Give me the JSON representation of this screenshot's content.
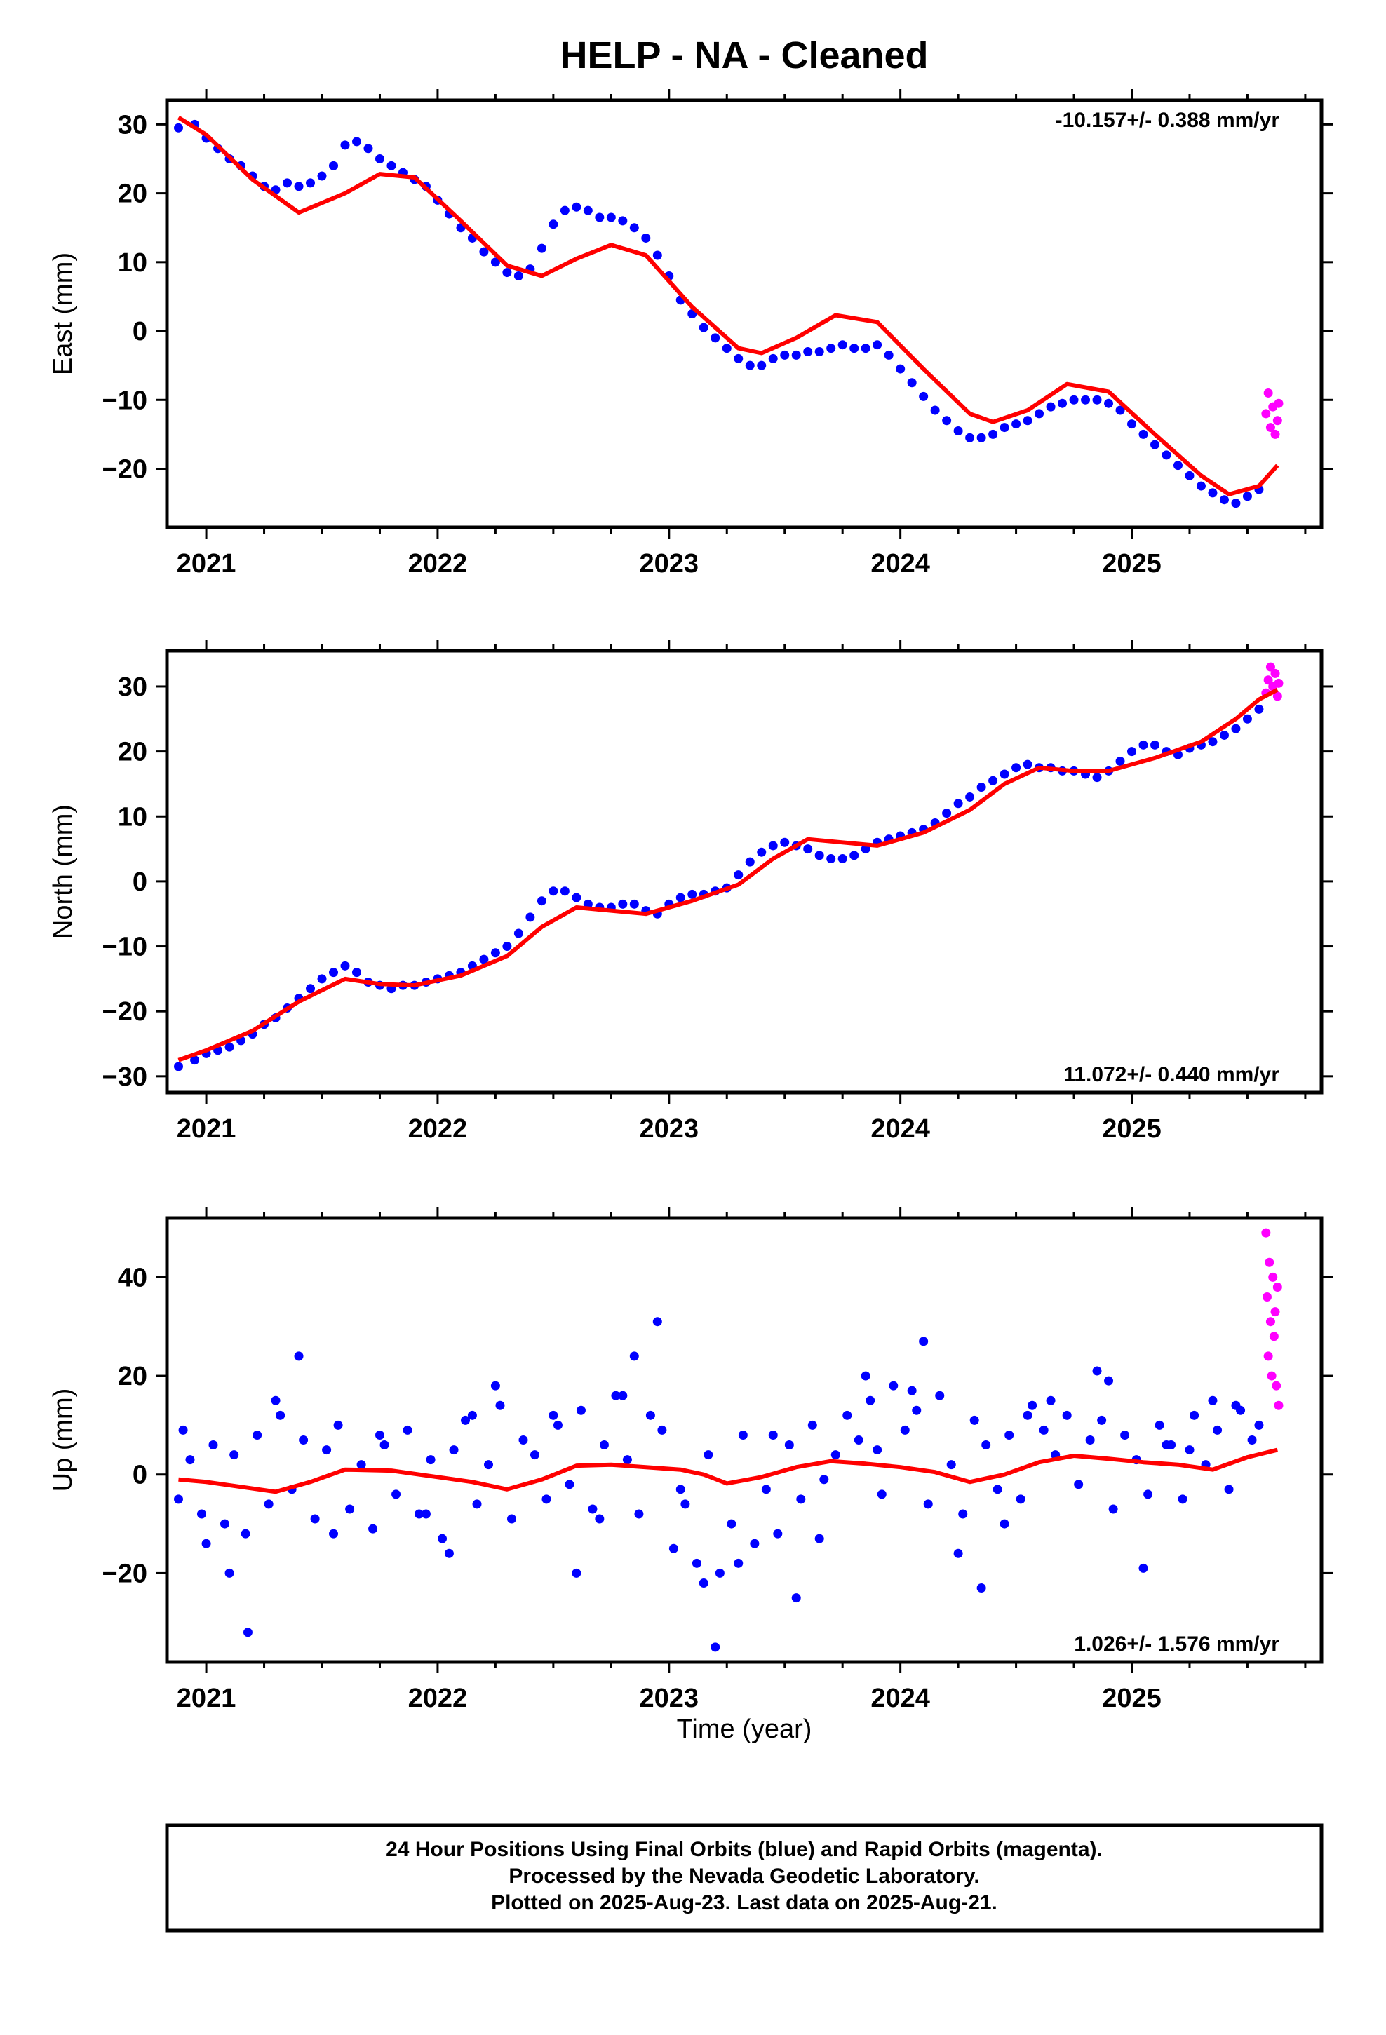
{
  "title": "HELP  - NA - Cleaned",
  "xlabel": "Time (year)",
  "colors": {
    "final": "#0000ff",
    "rapid": "#ff00ff",
    "model": "#ff0000"
  },
  "footer": {
    "line1": "24 Hour Positions Using Final Orbits (blue) and Rapid Orbits (magenta).",
    "line2": "Processed by the Nevada Geodetic Laboratory.",
    "line3": "Plotted on 2025-Aug-23. Last data on 2025-Aug-21."
  },
  "chart_data": [
    {
      "type": "scatter",
      "ylabel": "East (mm)",
      "rate_label": "-10.157+/- 0.388 mm/yr",
      "rate_position": "top-right",
      "xlim": [
        2020.83,
        2025.82
      ],
      "ylim": [
        -28.5,
        33.5
      ],
      "x_ticks": [
        2021,
        2022,
        2023,
        2024,
        2025
      ],
      "y_ticks": [
        -20,
        -10,
        0,
        10,
        20,
        30
      ],
      "model": {
        "x": [
          2020.88,
          2021.0,
          2021.2,
          2021.4,
          2021.6,
          2021.75,
          2021.9,
          2022.1,
          2022.3,
          2022.45,
          2022.6,
          2022.75,
          2022.9,
          2023.1,
          2023.3,
          2023.4,
          2023.55,
          2023.72,
          2023.9,
          2024.1,
          2024.3,
          2024.4,
          2024.55,
          2024.72,
          2024.9,
          2025.1,
          2025.3,
          2025.42,
          2025.55,
          2025.63
        ],
        "y": [
          31,
          28.5,
          22,
          17.2,
          20,
          22.8,
          22.3,
          16,
          9.5,
          8,
          10.5,
          12.5,
          11,
          3.5,
          -2.5,
          -3.2,
          -1,
          2.3,
          1.3,
          -5.5,
          -12,
          -13.2,
          -11.5,
          -7.7,
          -8.8,
          -15,
          -21,
          -23.7,
          -22.5,
          -19.5
        ]
      },
      "final_orbits": {
        "x": [
          2020.88,
          2020.95,
          2021.0,
          2021.05,
          2021.1,
          2021.15,
          2021.2,
          2021.25,
          2021.3,
          2021.35,
          2021.4,
          2021.45,
          2021.5,
          2021.55,
          2021.6,
          2021.65,
          2021.7,
          2021.75,
          2021.8,
          2021.85,
          2021.9,
          2021.95,
          2022.0,
          2022.05,
          2022.1,
          2022.15,
          2022.2,
          2022.25,
          2022.3,
          2022.35,
          2022.4,
          2022.45,
          2022.5,
          2022.55,
          2022.6,
          2022.65,
          2022.7,
          2022.75,
          2022.8,
          2022.85,
          2022.9,
          2022.95,
          2023.0,
          2023.05,
          2023.1,
          2023.15,
          2023.2,
          2023.25,
          2023.3,
          2023.35,
          2023.4,
          2023.45,
          2023.5,
          2023.55,
          2023.6,
          2023.65,
          2023.7,
          2023.75,
          2023.8,
          2023.85,
          2023.9,
          2023.95,
          2024.0,
          2024.05,
          2024.1,
          2024.15,
          2024.2,
          2024.25,
          2024.3,
          2024.35,
          2024.4,
          2024.45,
          2024.5,
          2024.55,
          2024.6,
          2024.65,
          2024.7,
          2024.75,
          2024.8,
          2024.85,
          2024.9,
          2024.95,
          2025.0,
          2025.05,
          2025.1,
          2025.15,
          2025.2,
          2025.25,
          2025.3,
          2025.35,
          2025.4,
          2025.45,
          2025.5,
          2025.55
        ],
        "y": [
          29.5,
          30,
          28,
          26.5,
          25,
          24,
          22.5,
          21,
          20.5,
          21.5,
          21,
          21.5,
          22.5,
          24,
          27,
          27.5,
          26.5,
          25,
          24,
          23,
          22,
          21,
          19,
          17,
          15,
          13.5,
          11.5,
          10,
          8.5,
          8,
          9,
          12,
          15.5,
          17.5,
          18,
          17.5,
          16.5,
          16.5,
          16,
          15,
          13.5,
          11,
          8,
          4.5,
          2.5,
          0.5,
          -1,
          -2.5,
          -4,
          -5,
          -5,
          -4,
          -3.5,
          -3.5,
          -3,
          -3,
          -2.5,
          -2,
          -2.5,
          -2.5,
          -2,
          -3.5,
          -5.5,
          -7.5,
          -9.5,
          -11.5,
          -13,
          -14.5,
          -15.5,
          -15.5,
          -15,
          -14,
          -13.5,
          -13,
          -12,
          -11,
          -10.5,
          -10,
          -10,
          -10,
          -10.5,
          -11.5,
          -13.5,
          -15,
          -16.5,
          -18,
          -19.5,
          -21,
          -22.5,
          -23.5,
          -24.5,
          -25,
          -24,
          -23
        ]
      },
      "rapid_orbits": {
        "x": [
          2025.58,
          2025.59,
          2025.6,
          2025.61,
          2025.62,
          2025.63,
          2025.635
        ],
        "y": [
          -12,
          -9,
          -14,
          -11,
          -15,
          -13,
          -10.5
        ]
      }
    },
    {
      "type": "scatter",
      "ylabel": "North (mm)",
      "rate_label": "11.072+/- 0.440 mm/yr",
      "rate_position": "bottom-right",
      "xlim": [
        2020.83,
        2025.82
      ],
      "ylim": [
        -32.5,
        35.5
      ],
      "x_ticks": [
        2021,
        2022,
        2023,
        2024,
        2025
      ],
      "y_ticks": [
        -30,
        -20,
        -10,
        0,
        10,
        20,
        30
      ],
      "model": {
        "x": [
          2020.88,
          2021.0,
          2021.2,
          2021.4,
          2021.6,
          2021.75,
          2021.9,
          2022.1,
          2022.3,
          2022.45,
          2022.6,
          2022.75,
          2022.9,
          2023.1,
          2023.3,
          2023.45,
          2023.6,
          2023.75,
          2023.9,
          2024.1,
          2024.3,
          2024.45,
          2024.6,
          2024.75,
          2024.9,
          2025.1,
          2025.3,
          2025.45,
          2025.55,
          2025.63
        ],
        "y": [
          -27.5,
          -26,
          -23,
          -18.5,
          -15,
          -15.8,
          -16,
          -14.5,
          -11.5,
          -7,
          -4,
          -4.5,
          -5,
          -3,
          -0.5,
          3.5,
          6.5,
          6,
          5.5,
          7.5,
          11,
          15,
          17.5,
          17,
          17,
          19,
          21.5,
          25,
          28,
          29.5
        ]
      },
      "final_orbits": {
        "x": [
          2020.88,
          2020.95,
          2021.0,
          2021.05,
          2021.1,
          2021.15,
          2021.2,
          2021.25,
          2021.3,
          2021.35,
          2021.4,
          2021.45,
          2021.5,
          2021.55,
          2021.6,
          2021.65,
          2021.7,
          2021.75,
          2021.8,
          2021.85,
          2021.9,
          2021.95,
          2022.0,
          2022.05,
          2022.1,
          2022.15,
          2022.2,
          2022.25,
          2022.3,
          2022.35,
          2022.4,
          2022.45,
          2022.5,
          2022.55,
          2022.6,
          2022.65,
          2022.7,
          2022.75,
          2022.8,
          2022.85,
          2022.9,
          2022.95,
          2023.0,
          2023.05,
          2023.1,
          2023.15,
          2023.2,
          2023.25,
          2023.3,
          2023.35,
          2023.4,
          2023.45,
          2023.5,
          2023.55,
          2023.6,
          2023.65,
          2023.7,
          2023.75,
          2023.8,
          2023.85,
          2023.9,
          2023.95,
          2024.0,
          2024.05,
          2024.1,
          2024.15,
          2024.2,
          2024.25,
          2024.3,
          2024.35,
          2024.4,
          2024.45,
          2024.5,
          2024.55,
          2024.6,
          2024.65,
          2024.7,
          2024.75,
          2024.8,
          2024.85,
          2024.9,
          2024.95,
          2025.0,
          2025.05,
          2025.1,
          2025.15,
          2025.2,
          2025.25,
          2025.3,
          2025.35,
          2025.4,
          2025.45,
          2025.5,
          2025.55
        ],
        "y": [
          -28.5,
          -27.5,
          -26.5,
          -26,
          -25.5,
          -24.5,
          -23.5,
          -22,
          -21,
          -19.5,
          -18,
          -16.5,
          -15,
          -14,
          -13,
          -14,
          -15.5,
          -16,
          -16.5,
          -16,
          -16,
          -15.5,
          -15,
          -14.5,
          -14,
          -13,
          -12,
          -11,
          -10,
          -8,
          -5.5,
          -3,
          -1.5,
          -1.5,
          -2.5,
          -3.5,
          -4,
          -4,
          -3.5,
          -3.5,
          -4.5,
          -5,
          -3.5,
          -2.5,
          -2,
          -2,
          -1.5,
          -1,
          1,
          3,
          4.5,
          5.5,
          6,
          5.5,
          5,
          4,
          3.5,
          3.5,
          4,
          5,
          6,
          6.5,
          7,
          7.5,
          8,
          9,
          10.5,
          12,
          13,
          14.5,
          15.5,
          16.5,
          17.5,
          18,
          17.5,
          17.5,
          17,
          17,
          16.5,
          16,
          17,
          18.5,
          20,
          21,
          21,
          20,
          19.5,
          20.5,
          21,
          21.5,
          22.5,
          23.5,
          25,
          26.5
        ]
      },
      "rapid_orbits": {
        "x": [
          2025.58,
          2025.59,
          2025.6,
          2025.61,
          2025.62,
          2025.63,
          2025.635
        ],
        "y": [
          29,
          31,
          33,
          30,
          32,
          28.5,
          30.5
        ]
      }
    },
    {
      "type": "scatter",
      "ylabel": "Up (mm)",
      "rate_label": "1.026+/- 1.576 mm/yr",
      "rate_position": "bottom-right",
      "xlim": [
        2020.83,
        2025.82
      ],
      "ylim": [
        -38,
        52
      ],
      "x_ticks": [
        2021,
        2022,
        2023,
        2024,
        2025
      ],
      "y_ticks": [
        -20,
        0,
        20,
        40
      ],
      "model": {
        "x": [
          2020.88,
          2021.0,
          2021.15,
          2021.3,
          2021.45,
          2021.6,
          2021.8,
          2022.0,
          2022.15,
          2022.3,
          2022.45,
          2022.6,
          2022.75,
          2022.9,
          2023.05,
          2023.15,
          2023.25,
          2023.4,
          2023.55,
          2023.7,
          2023.85,
          2024.0,
          2024.15,
          2024.3,
          2024.45,
          2024.6,
          2024.75,
          2024.9,
          2025.05,
          2025.2,
          2025.35,
          2025.5,
          2025.63
        ],
        "y": [
          -1,
          -1.5,
          -2.5,
          -3.5,
          -1.5,
          1,
          0.8,
          -0.5,
          -1.5,
          -3,
          -1,
          1.8,
          2,
          1.5,
          1,
          0,
          -1.8,
          -0.5,
          1.5,
          2.7,
          2.2,
          1.5,
          0.5,
          -1.5,
          0,
          2.5,
          3.8,
          3.2,
          2.5,
          2,
          1,
          3.5,
          5
        ]
      },
      "final_orbits": {
        "x": [
          2020.88,
          2020.93,
          2020.98,
          2021.03,
          2021.08,
          2021.12,
          2021.17,
          2021.22,
          2021.27,
          2021.32,
          2021.37,
          2021.42,
          2021.47,
          2021.52,
          2021.57,
          2021.62,
          2021.67,
          2021.72,
          2021.77,
          2021.82,
          2021.87,
          2021.92,
          2021.97,
          2022.02,
          2022.07,
          2022.12,
          2022.17,
          2022.22,
          2022.27,
          2022.32,
          2022.37,
          2022.42,
          2022.47,
          2022.52,
          2022.57,
          2022.62,
          2022.67,
          2022.72,
          2022.77,
          2022.82,
          2022.87,
          2022.92,
          2022.97,
          2023.02,
          2023.07,
          2023.12,
          2023.17,
          2023.22,
          2023.27,
          2023.32,
          2023.37,
          2023.42,
          2023.47,
          2023.52,
          2023.57,
          2023.62,
          2023.67,
          2023.72,
          2023.77,
          2023.82,
          2023.87,
          2023.92,
          2023.97,
          2024.02,
          2024.07,
          2024.12,
          2024.17,
          2024.22,
          2024.27,
          2024.32,
          2024.37,
          2024.42,
          2024.47,
          2024.52,
          2024.57,
          2024.62,
          2024.67,
          2024.72,
          2024.77,
          2024.82,
          2024.87,
          2024.92,
          2024.97,
          2025.02,
          2025.07,
          2025.12,
          2025.17,
          2025.22,
          2025.27,
          2025.32,
          2025.37,
          2025.42,
          2025.47,
          2025.52,
          2025.55,
          2020.9,
          2021.1,
          2021.3,
          2021.55,
          2021.75,
          2022.05,
          2022.25,
          2022.5,
          2022.7,
          2022.85,
          2022.95,
          2023.15,
          2023.3,
          2023.45,
          2023.65,
          2023.85,
          2024.05,
          2024.25,
          2024.45,
          2024.65,
          2024.85,
          2025.05,
          2025.25,
          2025.45,
          2021.0,
          2021.18,
          2021.4,
          2021.95,
          2022.15,
          2022.6,
          2022.8,
          2023.05,
          2023.2,
          2023.55,
          2023.9,
          2024.1,
          2024.35,
          2024.55,
          2024.9,
          2025.15,
          2025.35
        ],
        "y": [
          -5,
          3,
          -8,
          6,
          -10,
          4,
          -12,
          8,
          -6,
          12,
          -3,
          7,
          -9,
          5,
          10,
          -7,
          2,
          -11,
          6,
          -4,
          9,
          -8,
          3,
          -13,
          5,
          11,
          -6,
          2,
          14,
          -9,
          7,
          4,
          -5,
          10,
          -2,
          13,
          -7,
          6,
          16,
          3,
          -8,
          12,
          9,
          -15,
          -6,
          -18,
          4,
          -20,
          -10,
          8,
          -14,
          -3,
          -12,
          6,
          -5,
          10,
          -1,
          4,
          12,
          7,
          15,
          -4,
          18,
          9,
          13,
          -6,
          16,
          2,
          -8,
          11,
          6,
          -3,
          8,
          -5,
          14,
          9,
          4,
          12,
          -2,
          7,
          11,
          -7,
          8,
          3,
          -4,
          10,
          6,
          -5,
          12,
          2,
          9,
          -3,
          13,
          7,
          10,
          9,
          -20,
          15,
          -12,
          8,
          -16,
          18,
          12,
          -9,
          24,
          31,
          -22,
          -18,
          8,
          -13,
          20,
          17,
          -16,
          -10,
          15,
          21,
          -19,
          5,
          14,
          -14,
          -32,
          24,
          -8,
          12,
          -20,
          16,
          -3,
          -35,
          -25,
          5,
          27,
          -23,
          12,
          19,
          6,
          15
        ]
      },
      "rapid_orbits": {
        "x": [
          2025.58,
          2025.585,
          2025.59,
          2025.595,
          2025.6,
          2025.605,
          2025.61,
          2025.615,
          2025.62,
          2025.625,
          2025.63,
          2025.635
        ],
        "y": [
          49,
          36,
          24,
          43,
          31,
          20,
          40,
          28,
          33,
          18,
          38,
          14
        ]
      }
    }
  ]
}
